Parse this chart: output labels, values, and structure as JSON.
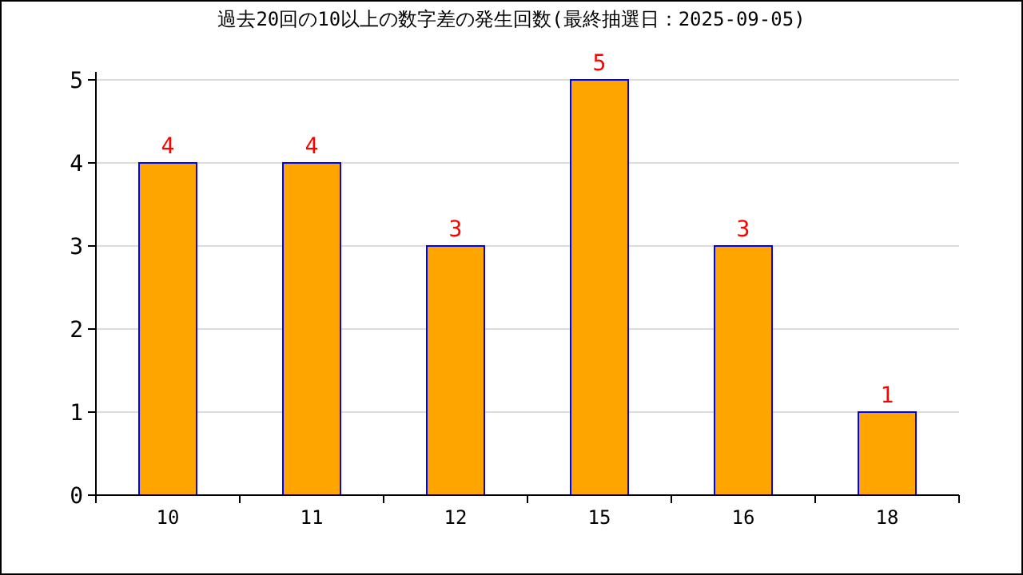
{
  "chart_data": {
    "type": "bar",
    "title": "過去20回の10以上の数字差の発生回数(最終抽選日：2025-09-05)",
    "categories": [
      "10",
      "11",
      "12",
      "15",
      "16",
      "18"
    ],
    "values": [
      4,
      4,
      3,
      5,
      3,
      1
    ],
    "color": "#ffa500",
    "ylim": [
      0,
      5
    ],
    "yticks": [
      0,
      1,
      2,
      3,
      4,
      5
    ],
    "grid": "y",
    "data_labels": true
  }
}
